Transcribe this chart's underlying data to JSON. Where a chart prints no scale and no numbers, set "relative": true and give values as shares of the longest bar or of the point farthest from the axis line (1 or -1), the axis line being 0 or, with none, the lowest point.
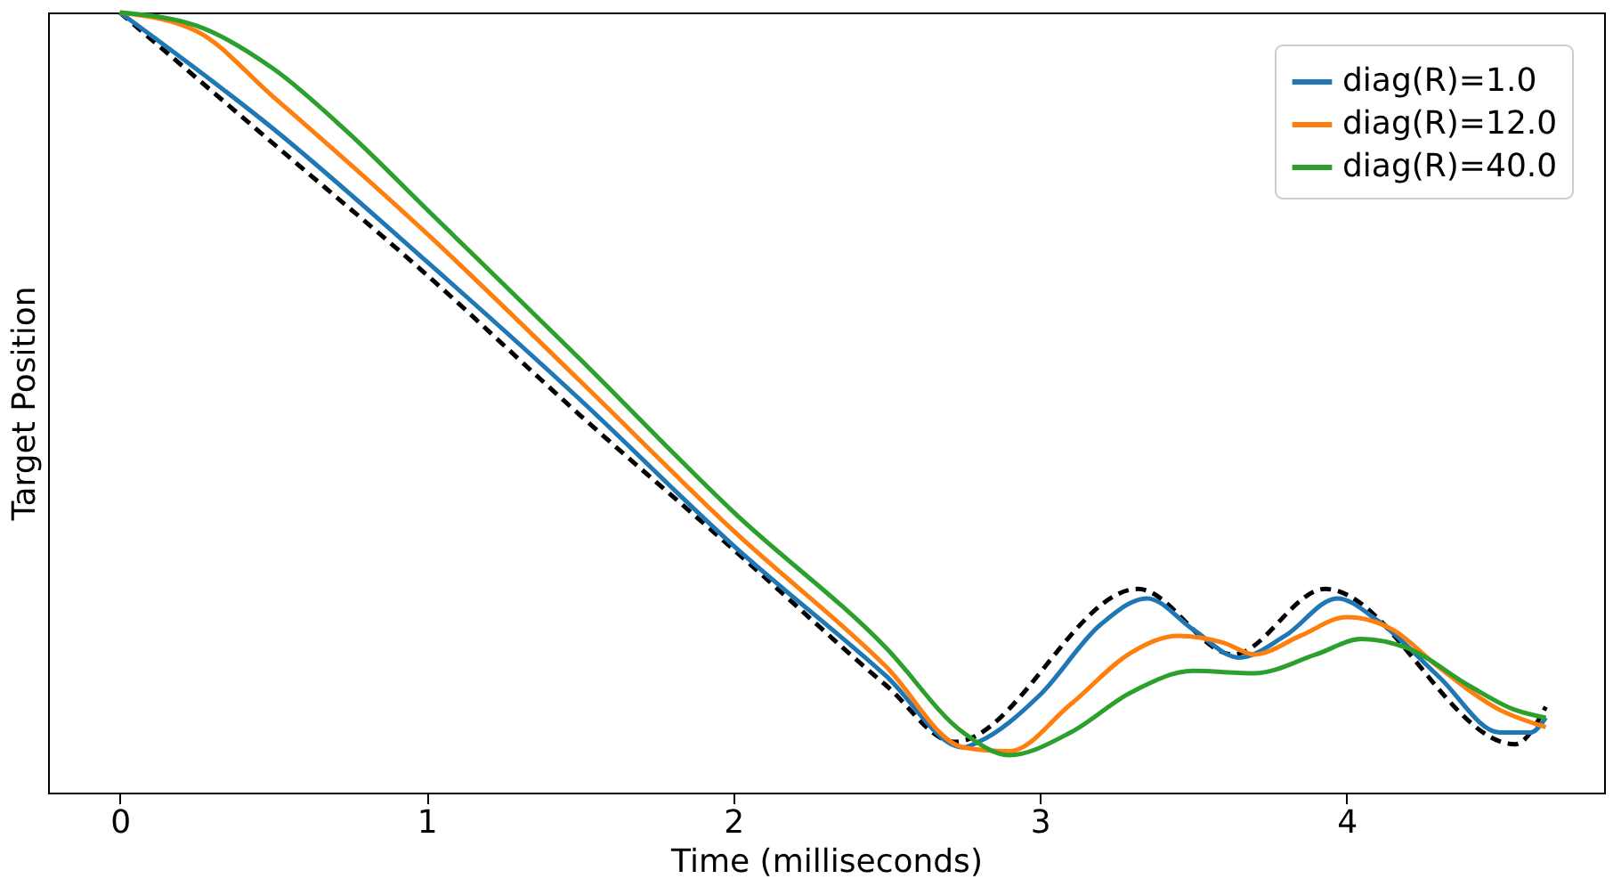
{
  "chart_data": {
    "type": "line",
    "xlabel": "Time (milliseconds)",
    "ylabel": "Target Position",
    "relative": true,
    "xlim": [
      -0.234,
      4.84
    ],
    "xticks": [
      0,
      1,
      2,
      3,
      4
    ],
    "tick_labels": "x",
    "grid": false,
    "legend": "top right",
    "marker": "none",
    "series": [
      {
        "color": "#000000",
        "line_style": "dashed",
        "x": [
          0,
          0.5,
          1,
          1.5,
          2,
          2.5,
          2.72,
          3.32,
          3.63,
          3.93,
          4.55,
          4.65
        ],
        "values": [
          1.0,
          0.832,
          0.664,
          0.484,
          0.312,
          0.137,
          0.065,
          0.261,
          0.177,
          0.261,
          0.062,
          0.11
        ]
      },
      {
        "name": "diag(R)=1.0",
        "color": "#1f77b4",
        "line_style": "solid",
        "x": [
          0,
          0.5,
          1,
          1.5,
          2,
          2.5,
          2.75,
          2.8,
          3.0,
          3.2,
          3.35,
          3.5,
          3.65,
          3.8,
          3.97,
          4.1,
          4.3,
          4.5,
          4.6,
          4.65
        ],
        "values": [
          1.0,
          0.851,
          0.681,
          0.504,
          0.317,
          0.149,
          0.058,
          0.065,
          0.125,
          0.216,
          0.249,
          0.209,
          0.173,
          0.201,
          0.249,
          0.221,
          0.149,
          0.077,
          0.077,
          0.096
        ]
      },
      {
        "name": "diag(R)=12.0",
        "color": "#ff7f0e",
        "line_style": "solid",
        "x": [
          0,
          0.25,
          0.5,
          1,
          1.5,
          2,
          2.5,
          2.75,
          2.9,
          3.1,
          3.3,
          3.45,
          3.6,
          3.7,
          3.85,
          4.0,
          4.15,
          4.3,
          4.5,
          4.65
        ],
        "values": [
          1.0,
          0.976,
          0.892,
          0.717,
          0.528,
          0.336,
          0.161,
          0.058,
          0.053,
          0.113,
          0.18,
          0.201,
          0.192,
          0.177,
          0.201,
          0.225,
          0.209,
          0.161,
          0.106,
          0.084
        ]
      },
      {
        "name": "diag(R)=40.0",
        "color": "#2ca02c",
        "line_style": "solid",
        "x": [
          0,
          0.25,
          0.5,
          0.75,
          1,
          1.5,
          2,
          2.5,
          2.75,
          2.9,
          3.1,
          3.3,
          3.5,
          3.7,
          3.9,
          4.05,
          4.2,
          4.4,
          4.55,
          4.65
        ],
        "values": [
          1.0,
          0.983,
          0.928,
          0.844,
          0.748,
          0.556,
          0.36,
          0.185,
          0.077,
          0.048,
          0.077,
          0.129,
          0.156,
          0.153,
          0.177,
          0.197,
          0.185,
          0.137,
          0.106,
          0.096
        ]
      }
    ]
  }
}
